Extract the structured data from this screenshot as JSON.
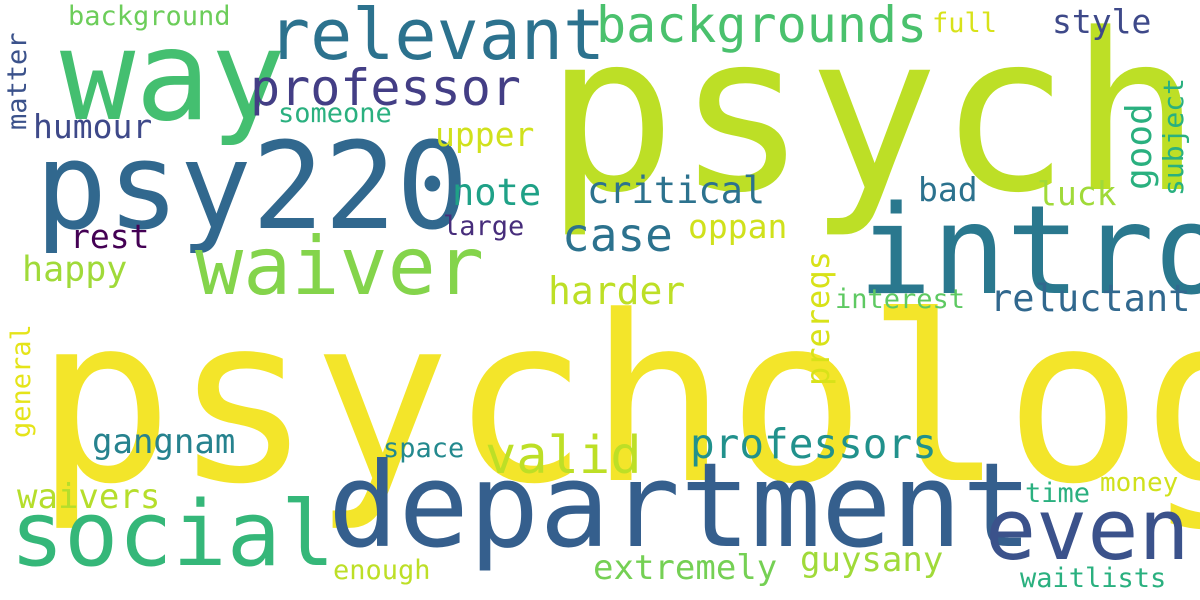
{
  "words": [
    {
      "text": "psychology",
      "color": "#f3e52a"
    },
    {
      "text": "psych",
      "color": "#bddf26"
    },
    {
      "text": "department",
      "color": "#355f8d"
    },
    {
      "text": "intro",
      "color": "#2a788e"
    },
    {
      "text": "psy220",
      "color": "#31688e"
    },
    {
      "text": "way",
      "color": "#44bf70"
    },
    {
      "text": "waiver",
      "color": "#84d44b"
    },
    {
      "text": "social",
      "color": "#35b779"
    },
    {
      "text": "even",
      "color": "#3b528b"
    },
    {
      "text": "relevant",
      "color": "#2c728e"
    },
    {
      "text": "backgrounds",
      "color": "#4ac16d"
    },
    {
      "text": "professor",
      "color": "#433e85"
    },
    {
      "text": "valid",
      "color": "#bddf26"
    },
    {
      "text": "case",
      "color": "#2c728e"
    },
    {
      "text": "professors",
      "color": "#21918c"
    },
    {
      "text": "reluctant",
      "color": "#31688e"
    },
    {
      "text": "harder",
      "color": "#bddf26"
    },
    {
      "text": "critical",
      "color": "#2c728e"
    },
    {
      "text": "note",
      "color": "#1fa187"
    },
    {
      "text": "upper",
      "color": "#d0e11c"
    },
    {
      "text": "humour",
      "color": "#3e4989"
    },
    {
      "text": "happy",
      "color": "#a0da39"
    },
    {
      "text": "gangnam",
      "color": "#26828e"
    },
    {
      "text": "waivers",
      "color": "#b5de2b"
    },
    {
      "text": "extremely",
      "color": "#75d054"
    },
    {
      "text": "guysany",
      "color": "#a0da39"
    },
    {
      "text": "rest",
      "color": "#440154"
    },
    {
      "text": "style",
      "color": "#3e4989"
    },
    {
      "text": "oppan",
      "color": "#d0e11c"
    },
    {
      "text": "luck",
      "color": "#a0da39"
    },
    {
      "text": "bad",
      "color": "#2c728e"
    },
    {
      "text": "someone",
      "color": "#2ab07f"
    },
    {
      "text": "large",
      "color": "#472d7b"
    },
    {
      "text": "interest",
      "color": "#5ec962"
    },
    {
      "text": "space",
      "color": "#23898e"
    },
    {
      "text": "background",
      "color": "#6ccd5a"
    },
    {
      "text": "full",
      "color": "#d8e219"
    },
    {
      "text": "time",
      "color": "#2ab07f"
    },
    {
      "text": "money",
      "color": "#d0e11c"
    },
    {
      "text": "enough",
      "color": "#bddf26"
    },
    {
      "text": "waitlists",
      "color": "#2ab07f"
    },
    {
      "text": "good",
      "color": "#2ab07f"
    },
    {
      "text": "subject",
      "color": "#2ab07f"
    },
    {
      "text": "prereqs",
      "color": "#d8e219"
    },
    {
      "text": "matter",
      "color": "#3b528b"
    },
    {
      "text": "general",
      "color": "#e5e419"
    }
  ]
}
